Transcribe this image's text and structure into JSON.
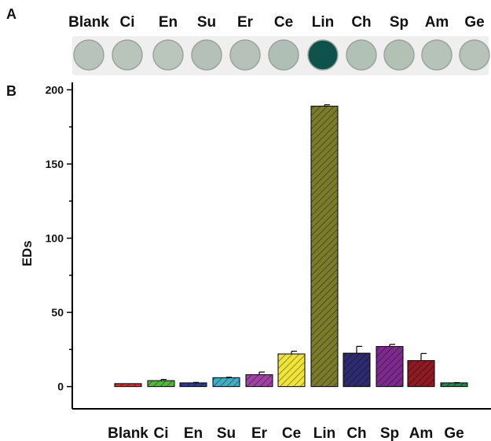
{
  "panels": {
    "a": "A",
    "b": "B"
  },
  "wells": {
    "labels": [
      "Blank",
      "Ci",
      "En",
      "Su",
      "Er",
      "Ce",
      "Lin",
      "Ch",
      "Sp",
      "Am",
      "Ge"
    ],
    "colors": [
      "#b7c3bb",
      "#b9c4bb",
      "#bac5bc",
      "#b5c1b8",
      "#b6c2b9",
      "#afbfb5",
      "#0f524b",
      "#b2c1b6",
      "#b3c0b4",
      "#b5c3b9",
      "#b7c2b9"
    ]
  },
  "chart_data": {
    "type": "bar",
    "title": "",
    "xlabel": "",
    "ylabel": "EDs",
    "ylim": [
      -15,
      205
    ],
    "yticks": [
      0,
      50,
      100,
      150,
      200
    ],
    "categories": [
      "Blank",
      "Ci",
      "En",
      "Su",
      "Er",
      "Ce",
      "Lin",
      "Ch",
      "Sp",
      "Am",
      "Ge"
    ],
    "values": [
      2,
      4,
      2.5,
      6,
      8,
      22,
      189,
      22.5,
      27,
      17.5,
      2.5
    ],
    "errors": [
      0,
      0.8,
      0.3,
      0.3,
      1.8,
      1.8,
      0.9,
      4.6,
      1.4,
      4.8,
      0.2
    ],
    "colors": [
      "#e8252d",
      "#4fba38",
      "#2e3c9c",
      "#3db0c7",
      "#9e42a3",
      "#f0e43a",
      "#7a7c2c",
      "#2d2a6e",
      "#7c2a8e",
      "#8e1a24",
      "#1a8a47"
    ],
    "hatch": "diagonal",
    "grid": false
  }
}
